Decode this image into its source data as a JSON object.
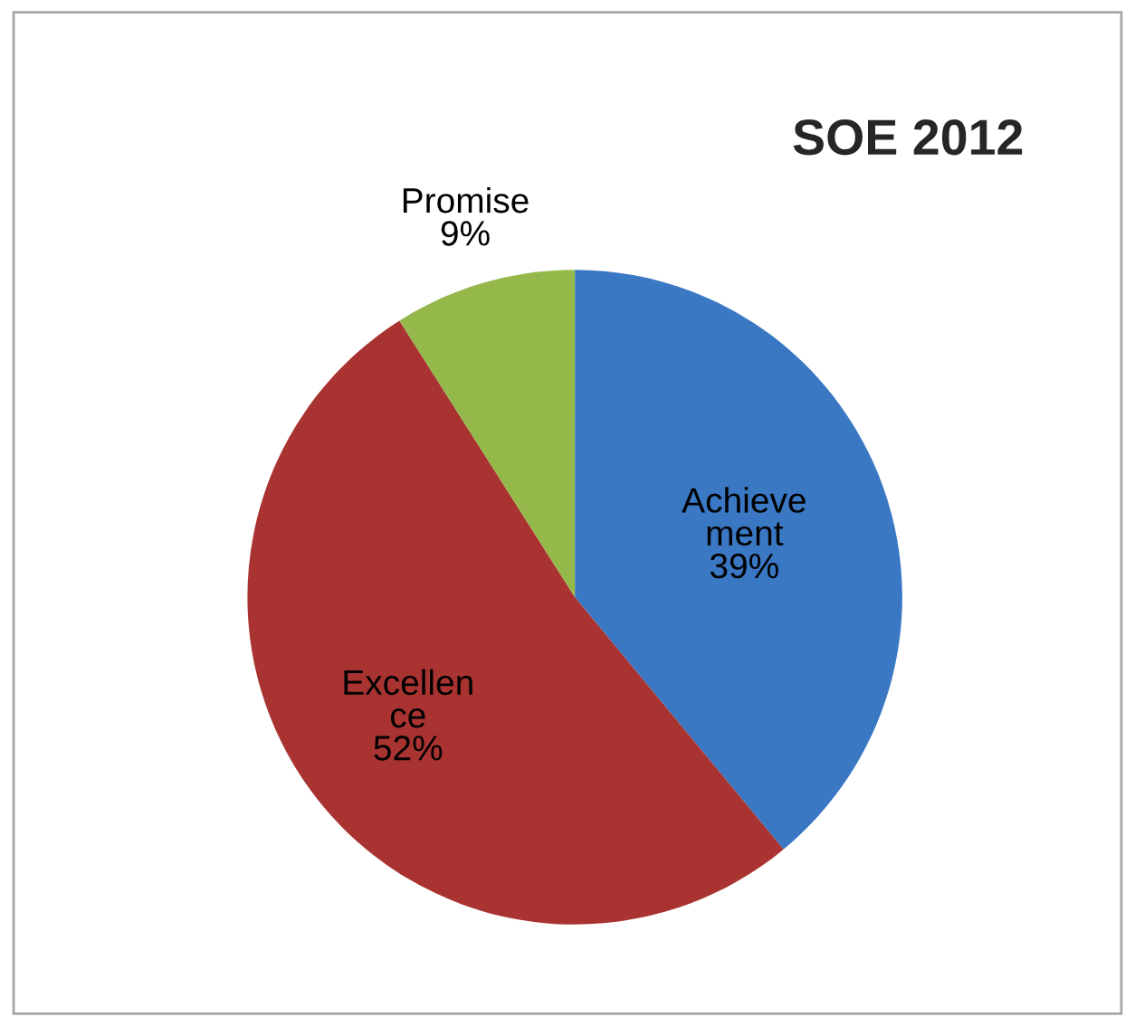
{
  "chart_data": {
    "type": "pie",
    "title": "SOE 2012",
    "categories": [
      "Achieve\nment",
      "Excellen\nce",
      "Promise"
    ],
    "values": [
      39,
      52,
      9
    ],
    "colors": [
      "#3a78c4",
      "#a83330",
      "#94b84a"
    ],
    "value_labels": [
      "39%",
      "52%",
      "9%"
    ],
    "legend": false
  }
}
